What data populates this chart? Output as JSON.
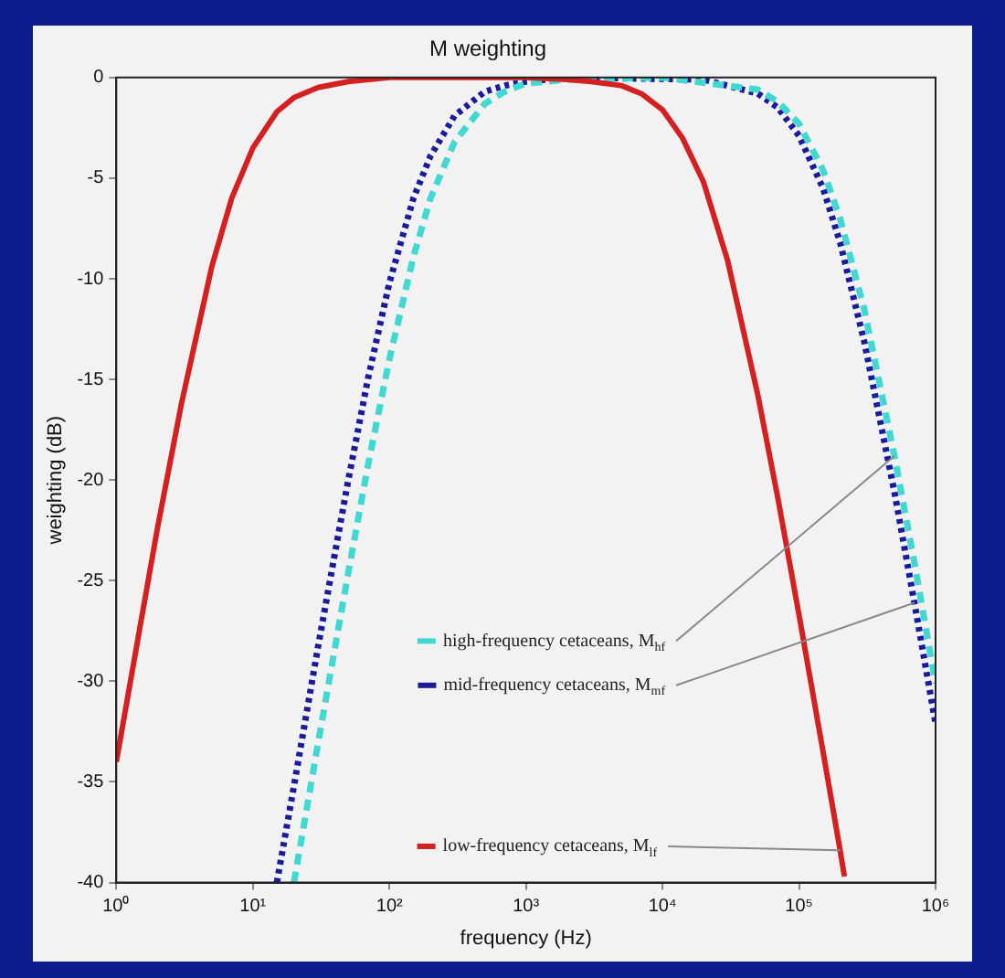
{
  "chart_data": {
    "type": "line",
    "title": "M weighting",
    "xlabel": "frequency (Hz)",
    "ylabel": "weighting (dB)",
    "log": "x",
    "grid": false,
    "legend": "bottom",
    "xlim": [
      1,
      1000000
    ],
    "xticks": [
      {
        "value": 1,
        "label": "10⁰"
      },
      {
        "value": 10,
        "label": "10¹"
      },
      {
        "value": 100,
        "label": "10²"
      },
      {
        "value": 1000,
        "label": "10³"
      },
      {
        "value": 10000,
        "label": "10⁴"
      },
      {
        "value": 100000,
        "label": "10⁵"
      },
      {
        "value": 1000000,
        "label": "10⁶"
      }
    ],
    "ylim": [
      -40,
      0
    ],
    "yticks": [
      -40,
      -35,
      -30,
      -25,
      -20,
      -15,
      -10,
      -5,
      0
    ],
    "series": [
      {
        "name": "low-frequency cetaceans, M$_{lf}$",
        "color": "#d42020",
        "line_style": "solid",
        "x": [
          1,
          1.5,
          2,
          3,
          5,
          7,
          10,
          15,
          20,
          30,
          50,
          100,
          1000,
          2000,
          3000,
          5000,
          7000,
          10000,
          14000,
          20000,
          30000,
          50000,
          70000,
          100000,
          150000,
          200000,
          215000
        ],
        "values": [
          -34,
          -27.2,
          -22.4,
          -16.2,
          -9.4,
          -6,
          -3.5,
          -1.7,
          -1,
          -0.5,
          -0.2,
          0,
          0,
          -0.1,
          -0.2,
          -0.4,
          -0.8,
          -1.6,
          -3,
          -5.2,
          -9.1,
          -15.8,
          -20.9,
          -26.7,
          -33.5,
          -38.4,
          -39.7
        ]
      },
      {
        "name": "high-frequency cetaceans, M$_{hf}$",
        "color": "#40d8d0",
        "line_style": "dashed",
        "x": [
          20,
          30,
          40,
          50,
          70,
          100,
          150,
          200,
          300,
          500,
          700,
          1000,
          2000,
          10000,
          50000,
          70000,
          100000,
          150000,
          200000,
          300000,
          500000,
          700000,
          1000000
        ],
        "values": [
          -40,
          -33.1,
          -28.3,
          -24.6,
          -19.2,
          -14,
          -8.9,
          -6,
          -3.2,
          -1.3,
          -0.7,
          -0.3,
          -0.1,
          0,
          -0.6,
          -1.2,
          -2.3,
          -4.6,
          -7,
          -11.5,
          -18.8,
          -24.1,
          -30.1
        ]
      },
      {
        "name": "mid-frequency cetaceans, M$_{mf}$",
        "color": "#1a1a9a",
        "line_style": "dotted",
        "x": [
          15,
          20,
          30,
          40,
          50,
          70,
          100,
          150,
          200,
          300,
          500,
          700,
          1000,
          2000,
          20000,
          50000,
          70000,
          100000,
          150000,
          200000,
          300000,
          500000,
          700000,
          1000000
        ],
        "values": [
          -40,
          -35.2,
          -28.3,
          -23.6,
          -20,
          -14.9,
          -10.2,
          -6,
          -3.9,
          -1.9,
          -0.7,
          -0.4,
          -0.2,
          0,
          -0.1,
          -0.8,
          -1.5,
          -2.9,
          -5.5,
          -8.2,
          -13.1,
          -20.6,
          -26.1,
          -32.1
        ]
      }
    ]
  }
}
